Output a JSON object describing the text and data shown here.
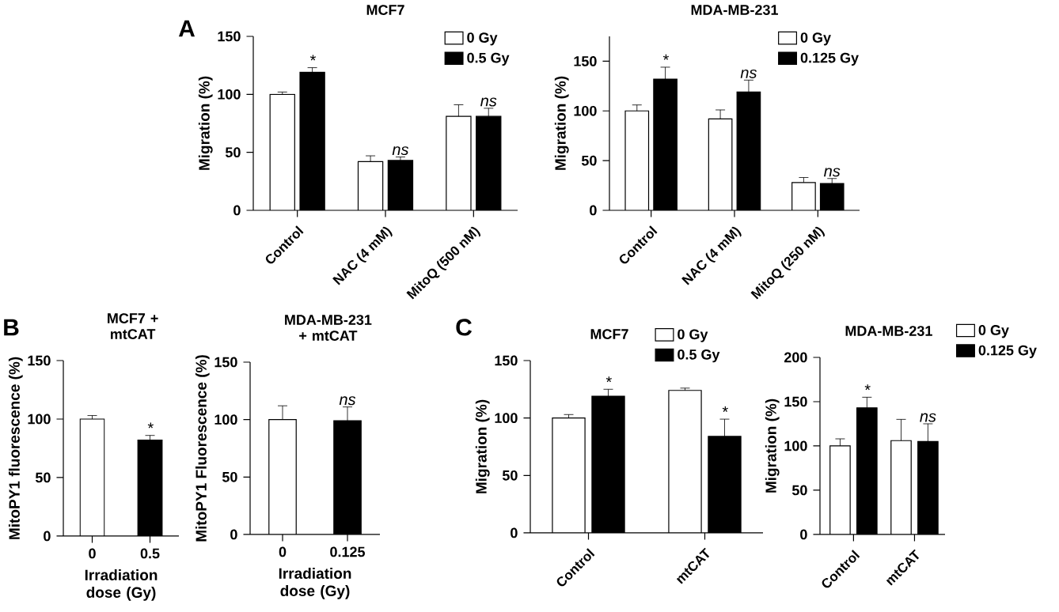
{
  "chart_data": [
    {
      "type": "bar",
      "title": "MCF7",
      "ylabel": "Migration (%)",
      "categories": [
        "Control",
        "NAC (4 mM)",
        "MitoQ (500 nM)"
      ],
      "series": [
        {
          "name": "0 Gy",
          "color": "#ffffff",
          "values": [
            100,
            42,
            81
          ],
          "errors": [
            2,
            5,
            10
          ]
        },
        {
          "name": "0.5 Gy",
          "color": "#000000",
          "values": [
            119,
            43,
            81
          ],
          "errors": [
            4,
            3,
            7
          ]
        }
      ],
      "ylim": [
        0,
        150
      ],
      "yticks": [
        0,
        50,
        100,
        150
      ],
      "legend": "top right",
      "annotations": [
        "A",
        {
          "text": "*",
          "x": "Control",
          "y": 119
        },
        {
          "text": "ns",
          "x": "NAC (4 mM)",
          "y": 43
        },
        {
          "text": "ns",
          "x": "MitoQ (500 nM)",
          "y": 81
        }
      ]
    },
    {
      "type": "bar",
      "title": "MDA-MB-231",
      "ylabel": "Migration (%)",
      "categories": [
        "Control",
        "NAC (4 mM)",
        "MitoQ (250 nM)"
      ],
      "series": [
        {
          "name": "0 Gy",
          "color": "#ffffff",
          "values": [
            100,
            92,
            28
          ],
          "errors": [
            6,
            9,
            5
          ]
        },
        {
          "name": "0.125 Gy",
          "color": "#000000",
          "values": [
            132,
            119,
            27
          ],
          "errors": [
            12,
            12,
            5
          ]
        }
      ],
      "ylim": [
        0,
        175
      ],
      "yticks": [
        0,
        50,
        100,
        150
      ],
      "legend": "top right",
      "annotations": [
        {
          "text": "*",
          "x": "Control",
          "y": 132
        },
        {
          "text": "ns",
          "x": "NAC (4 mM)",
          "y": 119
        },
        {
          "text": "ns",
          "x": "MitoQ (250 nM)",
          "y": 27
        }
      ]
    },
    {
      "type": "bar",
      "title": "MCF7 + mtCAT",
      "xlabel": "Irradiation dose (Gy)",
      "ylabel": "MitoPY1 fluorescence (%)",
      "categories": [
        "0",
        "0.5"
      ],
      "values": [
        100,
        82
      ],
      "errors": [
        3,
        4
      ],
      "colors": [
        "#ffffff",
        "#000000"
      ],
      "ylim": [
        0,
        150
      ],
      "yticks": [
        0,
        50,
        100,
        150
      ],
      "annotations": [
        "B",
        {
          "text": "*",
          "x": "0.5",
          "y": 82
        }
      ]
    },
    {
      "type": "bar",
      "title": "MDA-MB-231 + mtCAT",
      "xlabel": "Irradiation dose (Gy)",
      "ylabel": "MitoPY1 Fluorescence (%)",
      "categories": [
        "0",
        "0.125"
      ],
      "values": [
        100,
        99
      ],
      "errors": [
        12,
        12
      ],
      "colors": [
        "#ffffff",
        "#000000"
      ],
      "ylim": [
        0,
        150
      ],
      "yticks": [
        0,
        50,
        100,
        150
      ],
      "annotations": [
        {
          "text": "ns",
          "x": "0.125",
          "y": 99
        }
      ]
    },
    {
      "type": "bar",
      "title": "MCF7",
      "ylabel": "Migration (%)",
      "categories": [
        "Control",
        "mtCAT"
      ],
      "series": [
        {
          "name": "0 Gy",
          "color": "#ffffff",
          "values": [
            100,
            124
          ],
          "errors": [
            3,
            2
          ]
        },
        {
          "name": "0.5 Gy",
          "color": "#000000",
          "values": [
            119,
            84
          ],
          "errors": [
            6,
            15
          ]
        }
      ],
      "ylim": [
        0,
        150
      ],
      "yticks": [
        0,
        50,
        100,
        150
      ],
      "legend": "top right",
      "annotations": [
        "C",
        {
          "text": "*",
          "x": "Control",
          "y": 119
        },
        {
          "text": "*",
          "x": "mtCAT",
          "y": 84
        }
      ]
    },
    {
      "type": "bar",
      "title": "MDA-MB-231",
      "ylabel": "Migration (%)",
      "categories": [
        "Control",
        "mtCAT"
      ],
      "series": [
        {
          "name": "0 Gy",
          "color": "#ffffff",
          "values": [
            100,
            106
          ],
          "errors": [
            8,
            24
          ]
        },
        {
          "name": "0.125 Gy",
          "color": "#000000",
          "values": [
            143,
            105
          ],
          "errors": [
            12,
            20
          ]
        }
      ],
      "ylim": [
        0,
        200
      ],
      "yticks": [
        0,
        50,
        100,
        150,
        200
      ],
      "legend": "top right",
      "annotations": [
        {
          "text": "*",
          "x": "Control",
          "y": 143
        },
        {
          "text": "ns",
          "x": "mtCAT",
          "y": 105
        }
      ]
    }
  ]
}
